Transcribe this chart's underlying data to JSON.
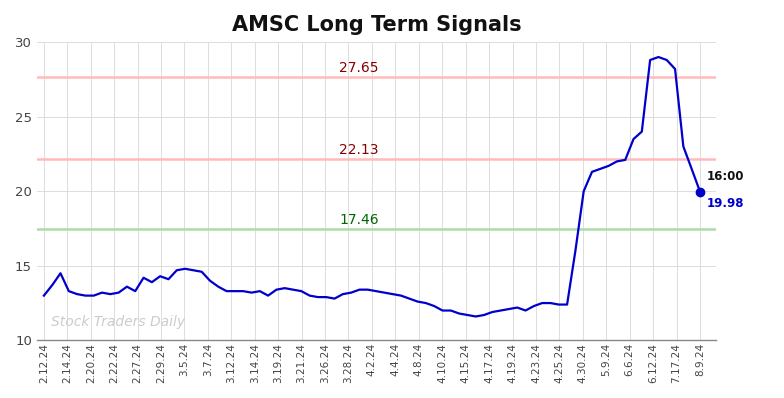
{
  "title": "AMSC Long Term Signals",
  "title_fontsize": 15,
  "background_color": "#ffffff",
  "plot_bg_color": "#ffffff",
  "line_color": "#0000cc",
  "line_width": 1.6,
  "hline1_value": 27.65,
  "hline1_color": "#ffbbbb",
  "hline1_label_color": "#880000",
  "hline2_value": 22.13,
  "hline2_color": "#ffbbbb",
  "hline2_label_color": "#880000",
  "hline3_value": 17.46,
  "hline3_color": "#aaddaa",
  "hline3_label_color": "#006600",
  "endpoint_label": "16:00",
  "endpoint_value": 19.98,
  "endpoint_color": "#0000cc",
  "watermark": "Stock Traders Daily",
  "watermark_color": "#cccccc",
  "ylim": [
    10,
    30
  ],
  "yticks": [
    10,
    15,
    20,
    25,
    30
  ],
  "x_labels": [
    "2.12.24",
    "2.14.24",
    "2.20.24",
    "2.22.24",
    "2.27.24",
    "2.29.24",
    "3.5.24",
    "3.7.24",
    "3.12.24",
    "3.14.24",
    "3.19.24",
    "3.21.24",
    "3.26.24",
    "3.28.24",
    "4.2.24",
    "4.4.24",
    "4.8.24",
    "4.10.24",
    "4.15.24",
    "4.17.24",
    "4.19.24",
    "4.23.24",
    "4.25.24",
    "4.30.24",
    "5.9.24",
    "6.6.24",
    "6.12.24",
    "7.17.24",
    "8.9.24"
  ],
  "price_data": [
    13.0,
    13.7,
    14.5,
    13.3,
    13.1,
    13.0,
    13.0,
    13.2,
    13.1,
    13.2,
    13.6,
    13.3,
    14.2,
    13.9,
    14.3,
    14.1,
    14.7,
    14.8,
    14.7,
    14.6,
    14.0,
    13.6,
    13.3,
    13.3,
    13.3,
    13.2,
    13.3,
    13.0,
    13.4,
    13.5,
    13.4,
    13.3,
    13.0,
    12.9,
    12.9,
    12.8,
    13.1,
    13.2,
    13.4,
    13.4,
    13.3,
    13.2,
    13.1,
    13.0,
    12.8,
    12.6,
    12.5,
    12.3,
    12.0,
    12.0,
    11.8,
    11.7,
    11.6,
    11.7,
    11.9,
    12.0,
    12.1,
    12.2,
    12.0,
    12.3,
    12.5,
    12.5,
    12.4,
    12.4,
    16.0,
    20.0,
    21.3,
    21.5,
    21.7,
    22.0,
    22.1,
    23.5,
    24.0,
    28.8,
    29.0,
    28.8,
    28.2,
    23.0,
    21.5,
    19.98
  ]
}
